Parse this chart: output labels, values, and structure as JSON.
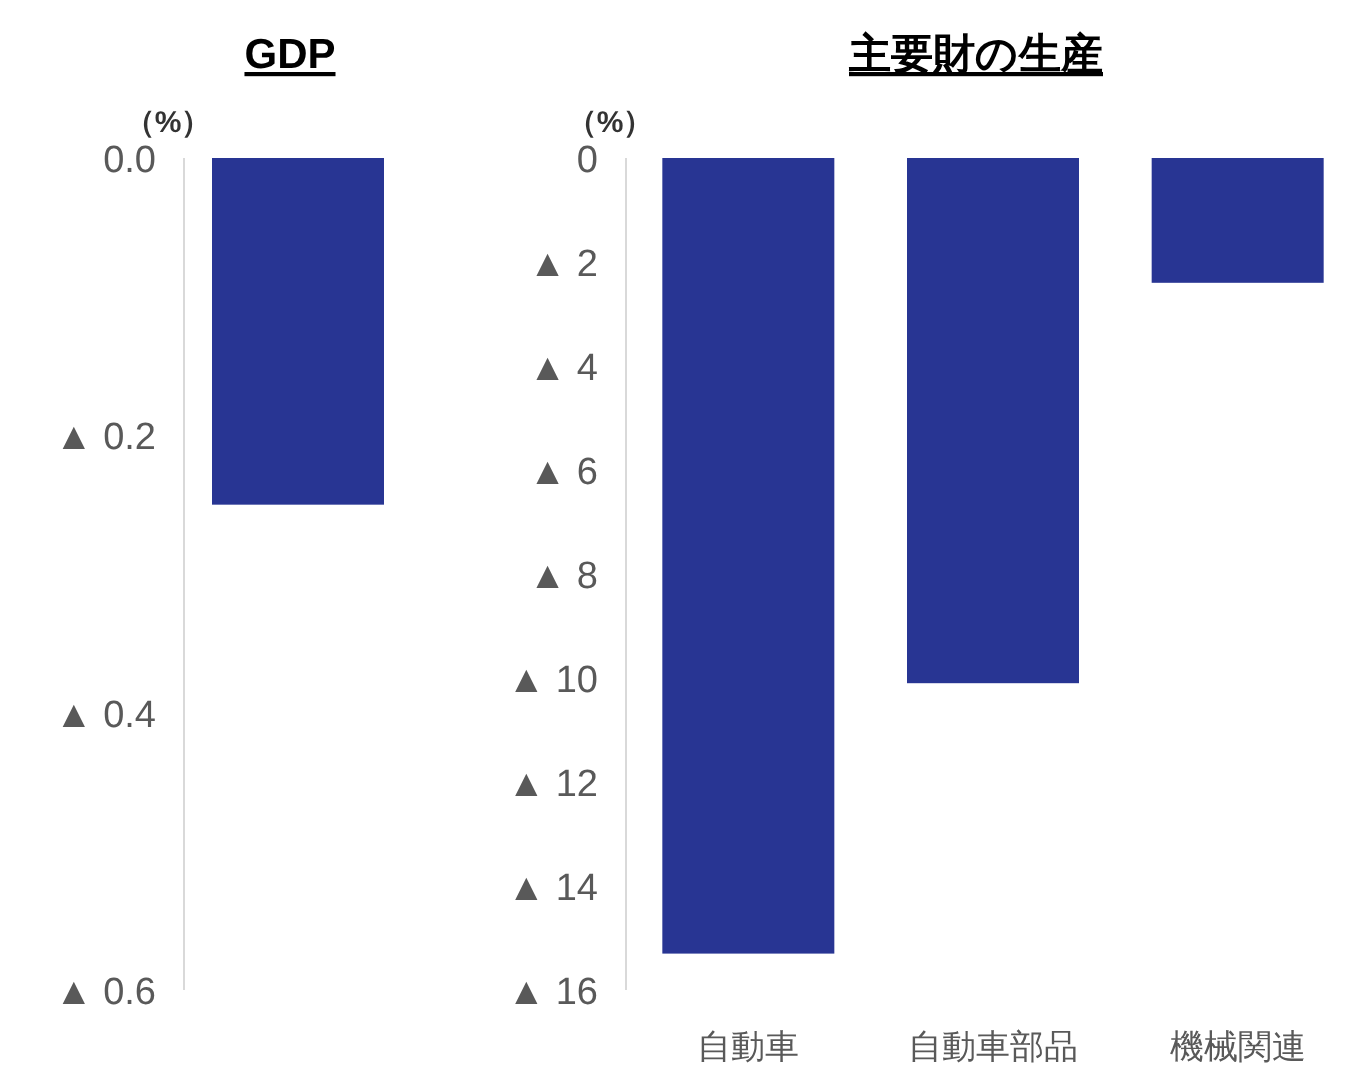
{
  "chart_data": [
    {
      "type": "bar",
      "title": "GDP",
      "ylabel": "（%）",
      "categories": [
        null
      ],
      "values": [
        -0.25
      ],
      "color": "#283593",
      "ylim": [
        -0.6,
        0
      ],
      "yticks": [
        {
          "value": 0,
          "label": "0.0"
        },
        {
          "value": -0.2,
          "label": "▲ 0.2"
        },
        {
          "value": -0.4,
          "label": "▲ 0.4"
        },
        {
          "value": -0.6,
          "label": "▲ 0.6"
        }
      ],
      "grid": false
    },
    {
      "type": "bar",
      "title": "主要財の生産",
      "ylabel": "（%）",
      "categories": [
        "自動車",
        "自動車部品",
        "機械関連"
      ],
      "values": [
        -15.3,
        -10.1,
        -2.4
      ],
      "color": "#283593",
      "ylim": [
        -16,
        0
      ],
      "yticks": [
        0,
        {
          "value": -2,
          "label": "▲ 2"
        },
        {
          "value": -4,
          "label": "▲ 4"
        },
        {
          "value": -6,
          "label": "▲ 6"
        },
        {
          "value": -8,
          "label": "▲ 8"
        },
        {
          "value": -10,
          "label": "▲ 10"
        },
        {
          "value": -12,
          "label": "▲ 12"
        },
        {
          "value": -14,
          "label": "▲ 14"
        },
        {
          "value": -16,
          "label": "▲ 16"
        }
      ],
      "grid": false
    }
  ]
}
